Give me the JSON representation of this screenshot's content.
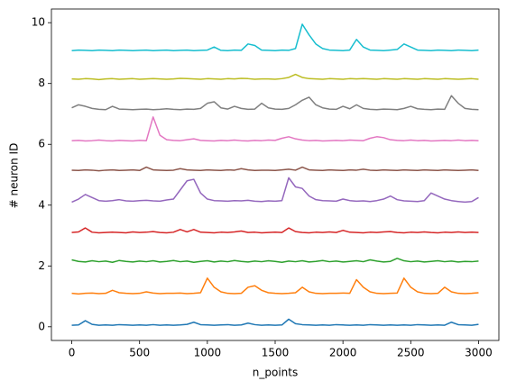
{
  "chart_data": {
    "type": "line",
    "xlabel": "n_points",
    "ylabel": "# neuron ID",
    "x": [
      0,
      50,
      100,
      150,
      200,
      250,
      300,
      350,
      400,
      450,
      500,
      550,
      600,
      650,
      700,
      750,
      800,
      850,
      900,
      950,
      1000,
      1050,
      1100,
      1150,
      1200,
      1250,
      1300,
      1350,
      1400,
      1450,
      1500,
      1550,
      1600,
      1650,
      1700,
      1750,
      1800,
      1850,
      1900,
      1950,
      2000,
      2050,
      2100,
      2150,
      2200,
      2250,
      2300,
      2350,
      2400,
      2450,
      2500,
      2550,
      2600,
      2650,
      2700,
      2750,
      2800,
      2850,
      2900,
      2950,
      3000
    ],
    "xlim": [
      -150,
      3150
    ],
    "xticks": [
      0,
      500,
      1000,
      1500,
      2000,
      2500,
      3000
    ],
    "ylim": [
      -0.45,
      10.45
    ],
    "yticks": [
      0,
      2,
      4,
      6,
      8,
      10
    ],
    "grid": false,
    "series": [
      {
        "color": "#1f77b4",
        "values": [
          0.05,
          0.06,
          0.2,
          0.08,
          0.05,
          0.06,
          0.05,
          0.07,
          0.06,
          0.05,
          0.06,
          0.05,
          0.07,
          0.05,
          0.06,
          0.05,
          0.06,
          0.08,
          0.15,
          0.07,
          0.06,
          0.05,
          0.06,
          0.07,
          0.05,
          0.06,
          0.12,
          0.07,
          0.05,
          0.06,
          0.05,
          0.06,
          0.25,
          0.1,
          0.07,
          0.06,
          0.05,
          0.06,
          0.05,
          0.07,
          0.06,
          0.05,
          0.06,
          0.05,
          0.07,
          0.06,
          0.05,
          0.06,
          0.05,
          0.06,
          0.05,
          0.07,
          0.06,
          0.05,
          0.06,
          0.05,
          0.15,
          0.07,
          0.06,
          0.05,
          0.08
        ]
      },
      {
        "color": "#ff7f0e",
        "values": [
          1.1,
          1.08,
          1.1,
          1.11,
          1.09,
          1.1,
          1.2,
          1.12,
          1.1,
          1.09,
          1.1,
          1.15,
          1.11,
          1.09,
          1.1,
          1.1,
          1.11,
          1.09,
          1.1,
          1.12,
          1.6,
          1.3,
          1.15,
          1.1,
          1.09,
          1.1,
          1.3,
          1.35,
          1.2,
          1.12,
          1.1,
          1.09,
          1.1,
          1.12,
          1.3,
          1.15,
          1.1,
          1.09,
          1.1,
          1.1,
          1.11,
          1.1,
          1.55,
          1.3,
          1.15,
          1.1,
          1.09,
          1.1,
          1.11,
          1.6,
          1.3,
          1.15,
          1.1,
          1.09,
          1.1,
          1.3,
          1.15,
          1.1,
          1.09,
          1.1,
          1.12
        ]
      },
      {
        "color": "#2ca02c",
        "values": [
          2.2,
          2.15,
          2.13,
          2.17,
          2.14,
          2.16,
          2.12,
          2.18,
          2.15,
          2.13,
          2.16,
          2.14,
          2.17,
          2.13,
          2.15,
          2.18,
          2.14,
          2.16,
          2.12,
          2.15,
          2.17,
          2.13,
          2.16,
          2.14,
          2.18,
          2.15,
          2.13,
          2.16,
          2.14,
          2.17,
          2.15,
          2.12,
          2.16,
          2.14,
          2.17,
          2.13,
          2.15,
          2.18,
          2.14,
          2.16,
          2.13,
          2.15,
          2.17,
          2.14,
          2.2,
          2.16,
          2.13,
          2.15,
          2.25,
          2.17,
          2.14,
          2.16,
          2.13,
          2.15,
          2.17,
          2.14,
          2.16,
          2.13,
          2.15,
          2.14,
          2.16
        ]
      },
      {
        "color": "#d62728",
        "values": [
          3.1,
          3.12,
          3.25,
          3.11,
          3.09,
          3.1,
          3.11,
          3.1,
          3.09,
          3.12,
          3.1,
          3.11,
          3.13,
          3.1,
          3.09,
          3.11,
          3.2,
          3.12,
          3.2,
          3.11,
          3.1,
          3.09,
          3.11,
          3.1,
          3.12,
          3.15,
          3.1,
          3.11,
          3.09,
          3.1,
          3.11,
          3.1,
          3.25,
          3.13,
          3.1,
          3.09,
          3.11,
          3.1,
          3.12,
          3.1,
          3.17,
          3.11,
          3.1,
          3.09,
          3.11,
          3.1,
          3.12,
          3.13,
          3.1,
          3.09,
          3.11,
          3.1,
          3.12,
          3.1,
          3.09,
          3.11,
          3.1,
          3.12,
          3.1,
          3.11,
          3.1
        ]
      },
      {
        "color": "#9467bd",
        "values": [
          4.1,
          4.2,
          4.35,
          4.25,
          4.15,
          4.13,
          4.15,
          4.18,
          4.14,
          4.13,
          4.15,
          4.16,
          4.14,
          4.13,
          4.17,
          4.2,
          4.5,
          4.8,
          4.85,
          4.4,
          4.2,
          4.15,
          4.14,
          4.13,
          4.15,
          4.14,
          4.16,
          4.13,
          4.12,
          4.14,
          4.13,
          4.15,
          4.9,
          4.6,
          4.55,
          4.3,
          4.18,
          4.15,
          4.14,
          4.13,
          4.2,
          4.15,
          4.13,
          4.14,
          4.12,
          4.15,
          4.2,
          4.3,
          4.18,
          4.14,
          4.13,
          4.12,
          4.15,
          4.4,
          4.3,
          4.2,
          4.15,
          4.12,
          4.1,
          4.12,
          4.25
        ]
      },
      {
        "color": "#8c564b",
        "values": [
          5.15,
          5.14,
          5.16,
          5.15,
          5.13,
          5.15,
          5.16,
          5.14,
          5.15,
          5.16,
          5.14,
          5.25,
          5.16,
          5.15,
          5.14,
          5.15,
          5.2,
          5.16,
          5.15,
          5.14,
          5.16,
          5.15,
          5.14,
          5.16,
          5.15,
          5.2,
          5.16,
          5.14,
          5.15,
          5.15,
          5.14,
          5.16,
          5.18,
          5.15,
          5.25,
          5.16,
          5.15,
          5.14,
          5.16,
          5.15,
          5.14,
          5.16,
          5.15,
          5.18,
          5.15,
          5.14,
          5.16,
          5.15,
          5.14,
          5.16,
          5.15,
          5.14,
          5.16,
          5.15,
          5.14,
          5.16,
          5.15,
          5.14,
          5.15,
          5.16,
          5.14
        ]
      },
      {
        "color": "#e377c2",
        "values": [
          6.12,
          6.13,
          6.11,
          6.12,
          6.14,
          6.12,
          6.11,
          6.13,
          6.12,
          6.11,
          6.13,
          6.12,
          6.9,
          6.3,
          6.15,
          6.13,
          6.12,
          6.15,
          6.18,
          6.13,
          6.12,
          6.11,
          6.13,
          6.12,
          6.14,
          6.12,
          6.11,
          6.13,
          6.12,
          6.14,
          6.13,
          6.2,
          6.25,
          6.18,
          6.14,
          6.12,
          6.13,
          6.11,
          6.12,
          6.13,
          6.12,
          6.14,
          6.13,
          6.12,
          6.2,
          6.25,
          6.22,
          6.15,
          6.13,
          6.12,
          6.14,
          6.12,
          6.13,
          6.11,
          6.12,
          6.13,
          6.12,
          6.14,
          6.12,
          6.13,
          6.12
        ]
      },
      {
        "color": "#7f7f7f",
        "values": [
          7.2,
          7.3,
          7.25,
          7.18,
          7.15,
          7.14,
          7.25,
          7.16,
          7.15,
          7.14,
          7.15,
          7.16,
          7.14,
          7.15,
          7.17,
          7.15,
          7.14,
          7.16,
          7.15,
          7.18,
          7.35,
          7.4,
          7.2,
          7.16,
          7.25,
          7.18,
          7.15,
          7.16,
          7.35,
          7.2,
          7.16,
          7.15,
          7.18,
          7.3,
          7.45,
          7.55,
          7.3,
          7.2,
          7.16,
          7.15,
          7.25,
          7.17,
          7.3,
          7.18,
          7.15,
          7.14,
          7.16,
          7.15,
          7.14,
          7.18,
          7.25,
          7.17,
          7.15,
          7.14,
          7.16,
          7.15,
          7.6,
          7.35,
          7.18,
          7.15,
          7.14
        ]
      },
      {
        "color": "#bcbd22",
        "values": [
          8.15,
          8.14,
          8.16,
          8.15,
          8.13,
          8.15,
          8.16,
          8.14,
          8.15,
          8.16,
          8.14,
          8.15,
          8.16,
          8.15,
          8.14,
          8.15,
          8.17,
          8.16,
          8.15,
          8.14,
          8.16,
          8.15,
          8.14,
          8.16,
          8.15,
          8.17,
          8.16,
          8.14,
          8.15,
          8.15,
          8.14,
          8.16,
          8.2,
          8.3,
          8.2,
          8.16,
          8.15,
          8.14,
          8.16,
          8.15,
          8.14,
          8.16,
          8.15,
          8.16,
          8.15,
          8.14,
          8.16,
          8.15,
          8.14,
          8.16,
          8.15,
          8.14,
          8.16,
          8.15,
          8.14,
          8.16,
          8.15,
          8.14,
          8.15,
          8.16,
          8.14
        ]
      },
      {
        "color": "#17becf",
        "values": [
          9.08,
          9.1,
          9.09,
          9.08,
          9.1,
          9.09,
          9.08,
          9.1,
          9.09,
          9.08,
          9.09,
          9.1,
          9.08,
          9.09,
          9.1,
          9.08,
          9.09,
          9.1,
          9.08,
          9.09,
          9.1,
          9.2,
          9.09,
          9.08,
          9.1,
          9.09,
          9.3,
          9.25,
          9.1,
          9.09,
          9.08,
          9.1,
          9.09,
          9.15,
          9.95,
          9.6,
          9.3,
          9.15,
          9.1,
          9.09,
          9.08,
          9.1,
          9.45,
          9.2,
          9.1,
          9.09,
          9.08,
          9.1,
          9.12,
          9.3,
          9.2,
          9.1,
          9.09,
          9.08,
          9.1,
          9.09,
          9.08,
          9.1,
          9.09,
          9.08,
          9.1
        ]
      }
    ]
  }
}
